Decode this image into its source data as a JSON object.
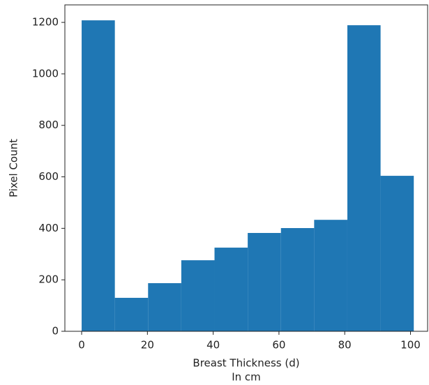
{
  "chart_data": {
    "type": "histogram",
    "bins": [
      0,
      10.1,
      20.2,
      30.3,
      40.4,
      50.5,
      60.6,
      70.7,
      80.8,
      90.9,
      101
    ],
    "values": [
      1208,
      130,
      187,
      276,
      325,
      382,
      401,
      433,
      1189,
      604
    ],
    "color": "#1f77b4",
    "xlabel": "Breast Thickness (d)",
    "xlabel_line2": "In cm",
    "ylabel": "Pixel Count",
    "xlim": [
      -5.1,
      105.2
    ],
    "xticks": [
      0,
      20,
      40,
      60,
      80,
      100
    ],
    "ylim": [
      0,
      1268
    ],
    "yticks": [
      0,
      200,
      400,
      600,
      800,
      1000,
      1200
    ],
    "grid": false
  }
}
